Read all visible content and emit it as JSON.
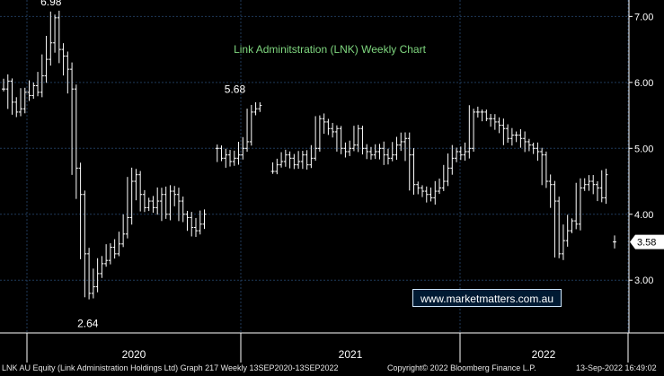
{
  "chart_data": {
    "type": "bar",
    "subtype": "weekly-ohlc",
    "title": "Link Adminitstration (LNK) Weekly Chart",
    "ylim": [
      2.2,
      7.25
    ],
    "y_ticks": [
      "7.00",
      "6.00",
      "5.00",
      "4.00",
      "3.00"
    ],
    "y_tick_values": [
      7,
      6,
      5,
      4,
      3
    ],
    "x_tick_labels": [
      "2020",
      "2021",
      "2022"
    ],
    "last_price": "3.58",
    "last_value": 3.58,
    "annotations": [
      "6.98",
      "5.68",
      "2.64"
    ],
    "annotation_values": [
      6.98,
      5.68,
      2.64
    ],
    "grid": true,
    "colors": {
      "background": "#000000",
      "grid": "#1f3a5a",
      "bars": "#ffffff",
      "title": "#7fd77f"
    },
    "series": [
      {
        "values": [
          5.9,
          6.02,
          5.7,
          5.55,
          5.6,
          5.85,
          5.8,
          5.95,
          5.85,
          6.1,
          6.35,
          6.6,
          6.98,
          6.5,
          6.4,
          6.2,
          5.9,
          4.7,
          4.3,
          3.4,
          2.8,
          2.9,
          3.1,
          3.25,
          3.3,
          3.5,
          3.4,
          3.55,
          3.7,
          3.95,
          4.5,
          4.6,
          4.3,
          4.1,
          4.2,
          4.1,
          4.2,
          4.3,
          4.0,
          4.35,
          4.3,
          4.2,
          4.0,
          3.95,
          3.8,
          3.75,
          3.85,
          4.0,
          null,
          null,
          5.0,
          4.85,
          4.9,
          4.8,
          4.85,
          4.9,
          5.0,
          5.1,
          5.55,
          5.6,
          5.65,
          null,
          null,
          4.65,
          4.75,
          4.8,
          4.9,
          4.85,
          4.75,
          4.8,
          4.9,
          4.75,
          4.85,
          5.0,
          5.45,
          5.4,
          5.3,
          5.25,
          5.3,
          5.0,
          4.95,
          5.0,
          5.05,
          5.3,
          5.0,
          4.95,
          4.9,
          4.95,
          5.0,
          4.9,
          4.85,
          4.9,
          5.05,
          5.1,
          5.15,
          4.9,
          4.45,
          4.4,
          4.35,
          4.3,
          4.25,
          4.35,
          4.4,
          4.5,
          4.7,
          4.85,
          4.95,
          4.9,
          4.95,
          5.0,
          5.55,
          5.55,
          5.55,
          5.45,
          5.45,
          5.4,
          5.35,
          5.3,
          5.15,
          5.2,
          5.2,
          5.15,
          5.1,
          5.05,
          5.0,
          4.95,
          4.9,
          4.5,
          4.45,
          4.2,
          3.4,
          3.6,
          3.75,
          3.9,
          3.85,
          4.4,
          4.45,
          4.5,
          4.45,
          4.4,
          4.25,
          4.6,
          null,
          3.58
        ]
      }
    ]
  },
  "watermark": "www.marketmatters.com.au",
  "footer": {
    "left": "LNK AU Equity (Link Administration Holdings Ltd) Graph 217  Weekly 13SEP2020-13SEP2022",
    "center": "Copyright© 2022 Bloomberg Finance L.P.",
    "right": "13-Sep-2022 16:49:02"
  }
}
